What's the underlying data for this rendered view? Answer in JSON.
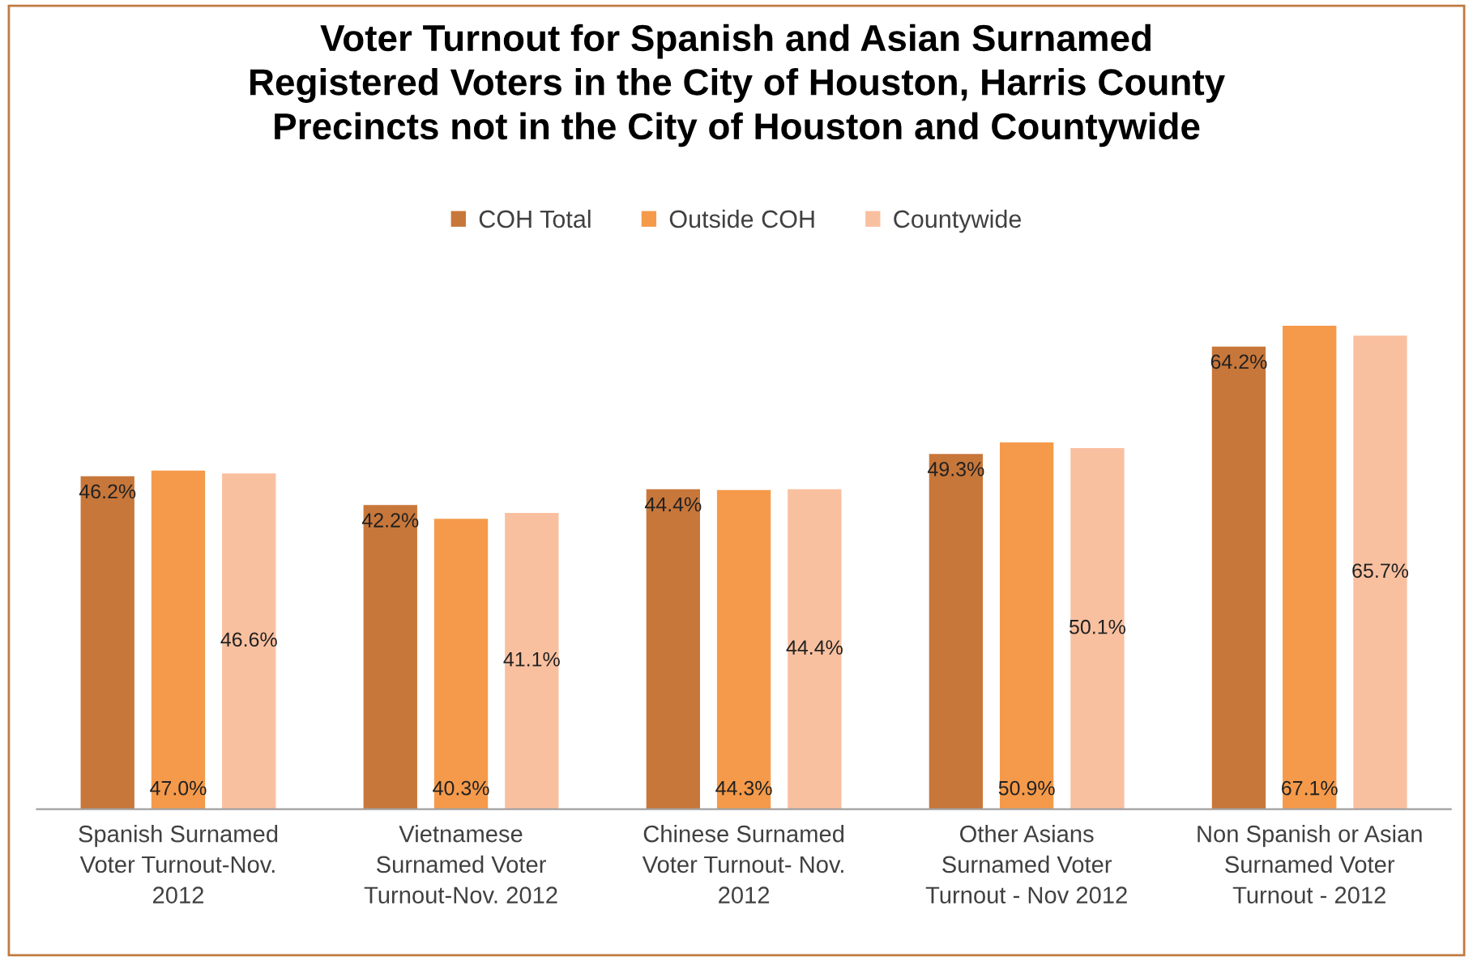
{
  "chart_data": {
    "type": "bar",
    "title": "Voter Turnout for Spanish and Asian Surnamed\nRegistered Voters in the City of Houston, Harris County\nPrecincts not in the City of Houston and Countywide",
    "categories": [
      "Spanish Surnamed\nVoter Turnout-Nov.\n2012",
      "Vietnamese\nSurnamed Voter\nTurnout-Nov. 2012",
      "Chinese Surnamed\nVoter Turnout- Nov.\n2012",
      "Other Asians\nSurnamed Voter\nTurnout - Nov 2012",
      "Non Spanish or Asian\nSurnamed Voter\nTurnout - 2012"
    ],
    "series": [
      {
        "name": "COH Total",
        "color": "#c8773a",
        "values": [
          46.2,
          42.2,
          44.4,
          49.3,
          64.2
        ],
        "value_labels": [
          "46.2%",
          "42.2%",
          "44.4%",
          "49.3%",
          "64.2%"
        ]
      },
      {
        "name": "Outside COH",
        "color": "#f59a4a",
        "values": [
          47.0,
          40.3,
          44.3,
          50.9,
          67.1
        ],
        "value_labels": [
          "47.0%",
          "40.3%",
          "44.3%",
          "50.9%",
          "67.1%"
        ]
      },
      {
        "name": "Countywide",
        "color": "#f9c0a0",
        "values": [
          46.6,
          41.1,
          44.4,
          50.1,
          65.7
        ],
        "value_labels": [
          "46.6%",
          "41.1%",
          "44.4%",
          "50.1%",
          "65.7%"
        ]
      }
    ],
    "legend": "top",
    "grid": false
  }
}
